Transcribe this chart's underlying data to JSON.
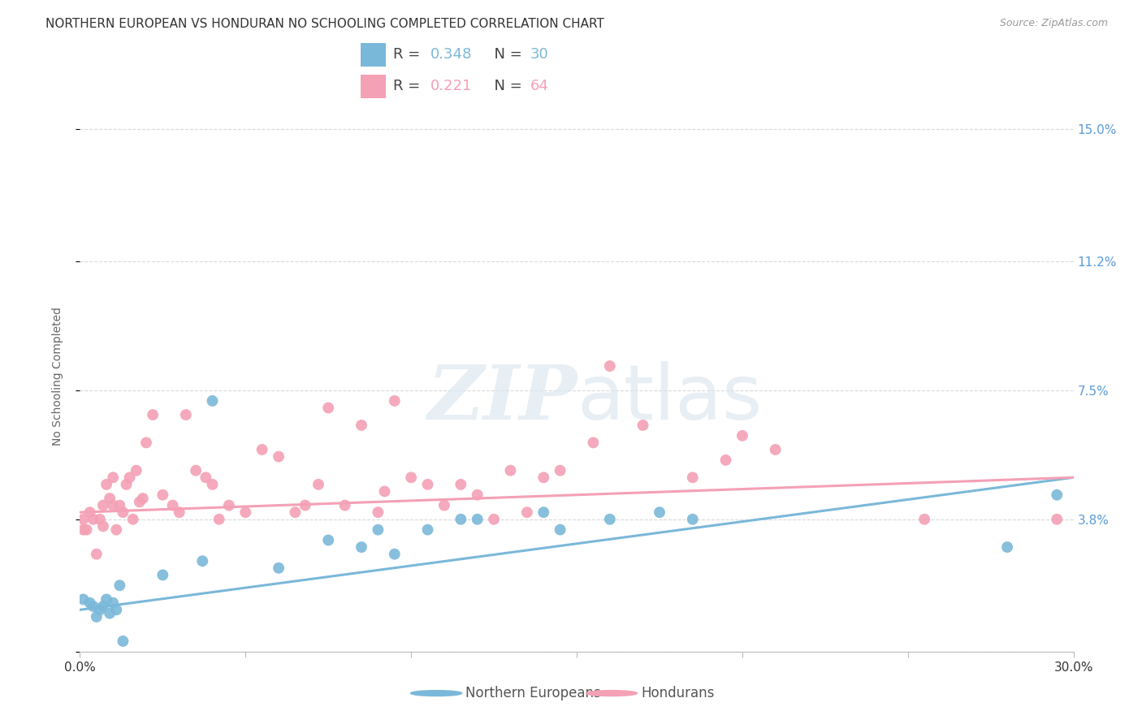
{
  "title": "NORTHERN EUROPEAN VS HONDURAN NO SCHOOLING COMPLETED CORRELATION CHART",
  "source": "Source: ZipAtlas.com",
  "ylabel": "No Schooling Completed",
  "xlim": [
    0.0,
    0.3
  ],
  "ylim": [
    0.0,
    0.158
  ],
  "yticks": [
    0.0,
    0.038,
    0.075,
    0.112,
    0.15
  ],
  "ytick_labels": [
    "",
    "3.8%",
    "7.5%",
    "11.2%",
    "15.0%"
  ],
  "xticks": [
    0.0,
    0.05,
    0.1,
    0.15,
    0.2,
    0.25,
    0.3
  ],
  "xtick_labels": [
    "0.0%",
    "",
    "",
    "",
    "",
    "",
    "30.0%"
  ],
  "blue_R": 0.348,
  "blue_N": 30,
  "pink_R": 0.221,
  "pink_N": 64,
  "blue_color": "#7ab8d9",
  "pink_color": "#f4a0b5",
  "blue_label": "Northern Europeans",
  "pink_label": "Hondurans",
  "right_tick_color": "#5b9bd5",
  "background_color": "#ffffff",
  "watermark_zip": "ZIP",
  "watermark_atlas": "atlas",
  "blue_points_x": [
    0.001,
    0.003,
    0.004,
    0.005,
    0.006,
    0.007,
    0.008,
    0.009,
    0.01,
    0.011,
    0.012,
    0.013,
    0.025,
    0.037,
    0.04,
    0.06,
    0.075,
    0.085,
    0.09,
    0.095,
    0.105,
    0.115,
    0.12,
    0.14,
    0.145,
    0.16,
    0.175,
    0.185,
    0.28,
    0.295
  ],
  "blue_points_y": [
    0.015,
    0.014,
    0.013,
    0.01,
    0.012,
    0.013,
    0.015,
    0.011,
    0.014,
    0.012,
    0.019,
    0.003,
    0.022,
    0.026,
    0.072,
    0.024,
    0.032,
    0.03,
    0.035,
    0.028,
    0.035,
    0.038,
    0.038,
    0.04,
    0.035,
    0.038,
    0.04,
    0.038,
    0.03,
    0.045
  ],
  "pink_points_x": [
    0.001,
    0.001,
    0.002,
    0.003,
    0.004,
    0.005,
    0.006,
    0.007,
    0.007,
    0.008,
    0.009,
    0.01,
    0.01,
    0.011,
    0.012,
    0.013,
    0.014,
    0.015,
    0.016,
    0.017,
    0.018,
    0.019,
    0.02,
    0.022,
    0.025,
    0.028,
    0.03,
    0.032,
    0.035,
    0.038,
    0.04,
    0.042,
    0.045,
    0.05,
    0.055,
    0.06,
    0.065,
    0.068,
    0.072,
    0.075,
    0.08,
    0.085,
    0.09,
    0.092,
    0.095,
    0.1,
    0.105,
    0.11,
    0.115,
    0.12,
    0.125,
    0.13,
    0.135,
    0.14,
    0.145,
    0.155,
    0.16,
    0.17,
    0.185,
    0.195,
    0.2,
    0.21,
    0.255,
    0.295
  ],
  "pink_points_y": [
    0.035,
    0.038,
    0.035,
    0.04,
    0.038,
    0.028,
    0.038,
    0.036,
    0.042,
    0.048,
    0.044,
    0.05,
    0.042,
    0.035,
    0.042,
    0.04,
    0.048,
    0.05,
    0.038,
    0.052,
    0.043,
    0.044,
    0.06,
    0.068,
    0.045,
    0.042,
    0.04,
    0.068,
    0.052,
    0.05,
    0.048,
    0.038,
    0.042,
    0.04,
    0.058,
    0.056,
    0.04,
    0.042,
    0.048,
    0.07,
    0.042,
    0.065,
    0.04,
    0.046,
    0.072,
    0.05,
    0.048,
    0.042,
    0.048,
    0.045,
    0.038,
    0.052,
    0.04,
    0.05,
    0.052,
    0.06,
    0.082,
    0.065,
    0.05,
    0.055,
    0.062,
    0.058,
    0.038,
    0.038
  ],
  "blue_line_x": [
    0.0,
    0.3
  ],
  "blue_line_y": [
    0.012,
    0.05
  ],
  "pink_line_x": [
    0.0,
    0.3
  ],
  "pink_line_y": [
    0.04,
    0.05
  ],
  "grid_color": "#d9d9d9",
  "title_fontsize": 11,
  "source_fontsize": 9,
  "label_fontsize": 10,
  "tick_fontsize": 11,
  "legend_fontsize": 13
}
